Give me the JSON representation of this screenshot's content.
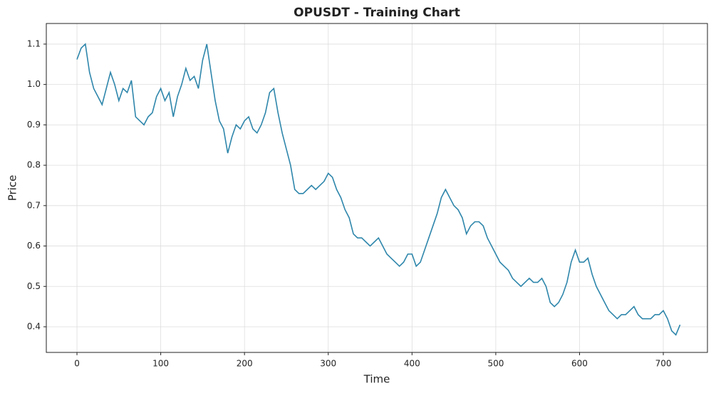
{
  "chart_data": {
    "type": "line",
    "title": "OPUSDT - Training Chart",
    "x_label": "Time",
    "y_label": "Price",
    "x": [
      0,
      5,
      10,
      15,
      20,
      25,
      30,
      35,
      40,
      45,
      50,
      55,
      60,
      65,
      70,
      75,
      80,
      85,
      90,
      95,
      100,
      105,
      110,
      115,
      120,
      125,
      130,
      135,
      140,
      145,
      150,
      155,
      160,
      165,
      170,
      175,
      180,
      185,
      190,
      195,
      200,
      205,
      210,
      215,
      220,
      225,
      230,
      235,
      240,
      245,
      250,
      255,
      260,
      265,
      270,
      275,
      280,
      285,
      290,
      295,
      300,
      305,
      310,
      315,
      320,
      325,
      330,
      335,
      340,
      345,
      350,
      355,
      360,
      365,
      370,
      375,
      380,
      385,
      390,
      395,
      400,
      405,
      410,
      415,
      420,
      425,
      430,
      435,
      440,
      445,
      450,
      455,
      460,
      465,
      470,
      475,
      480,
      485,
      490,
      495,
      500,
      505,
      510,
      515,
      520,
      525,
      530,
      535,
      540,
      545,
      550,
      555,
      560,
      565,
      570,
      575,
      580,
      585,
      590,
      595,
      600,
      605,
      610,
      615,
      620,
      625,
      630,
      635,
      640,
      645,
      650,
      655,
      660,
      665,
      670,
      675,
      680,
      685,
      690,
      695,
      700,
      705,
      710,
      715,
      720
    ],
    "series": [
      {
        "name": "Price",
        "color": "#2e86ab",
        "values": [
          1.062,
          1.09,
          1.1,
          1.03,
          0.99,
          0.97,
          0.95,
          0.99,
          1.03,
          1.0,
          0.96,
          0.99,
          0.98,
          1.01,
          0.92,
          0.91,
          0.9,
          0.92,
          0.93,
          0.97,
          0.99,
          0.96,
          0.98,
          0.92,
          0.97,
          1.0,
          1.04,
          1.01,
          1.02,
          0.99,
          1.06,
          1.1,
          1.03,
          0.96,
          0.91,
          0.89,
          0.83,
          0.87,
          0.9,
          0.89,
          0.91,
          0.92,
          0.89,
          0.88,
          0.9,
          0.93,
          0.98,
          0.99,
          0.93,
          0.88,
          0.84,
          0.8,
          0.74,
          0.73,
          0.73,
          0.74,
          0.75,
          0.74,
          0.75,
          0.76,
          0.78,
          0.77,
          0.74,
          0.72,
          0.69,
          0.67,
          0.63,
          0.62,
          0.62,
          0.61,
          0.6,
          0.61,
          0.62,
          0.6,
          0.58,
          0.57,
          0.56,
          0.55,
          0.56,
          0.58,
          0.58,
          0.55,
          0.56,
          0.59,
          0.62,
          0.65,
          0.68,
          0.72,
          0.74,
          0.72,
          0.7,
          0.69,
          0.67,
          0.63,
          0.65,
          0.66,
          0.66,
          0.65,
          0.62,
          0.6,
          0.58,
          0.56,
          0.55,
          0.54,
          0.52,
          0.51,
          0.5,
          0.51,
          0.52,
          0.51,
          0.51,
          0.52,
          0.5,
          0.46,
          0.45,
          0.46,
          0.48,
          0.51,
          0.56,
          0.59,
          0.56,
          0.56,
          0.57,
          0.53,
          0.5,
          0.48,
          0.46,
          0.44,
          0.43,
          0.42,
          0.43,
          0.43,
          0.44,
          0.45,
          0.43,
          0.42,
          0.42,
          0.42,
          0.43,
          0.43,
          0.44,
          0.42,
          0.39,
          0.38,
          0.405
        ]
      }
    ],
    "xlim": [
      -36.6,
      752.7
    ],
    "xticks": [
      0,
      100,
      200,
      300,
      400,
      500,
      600,
      700
    ],
    "ylim": [
      0.3365,
      1.151
    ],
    "yticks": [
      0.4,
      0.5,
      0.6,
      0.7,
      0.8,
      0.9,
      {
        "value": 1,
        "label": "1.0"
      },
      1.1
    ],
    "grid": true
  }
}
